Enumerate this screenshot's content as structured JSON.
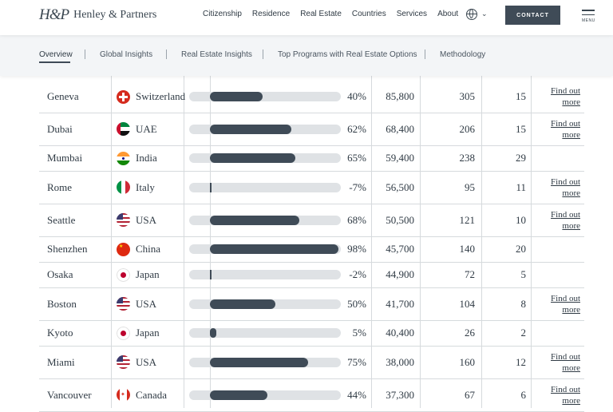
{
  "header": {
    "logo_mark": "H&P",
    "logo_text": "Henley & Partners",
    "nav": [
      "Citizenship",
      "Residence",
      "Real Estate",
      "Countries",
      "Services",
      "About"
    ],
    "contact_label": "CONTACT",
    "menu_label": "MENU",
    "globe_icon": "globe-icon",
    "chevron_icon": "chevron-down-icon"
  },
  "tabs": [
    "Overview",
    "Global Insights",
    "Real Estate Insights",
    "Top Programs with Real Estate Options",
    "Methodology"
  ],
  "active_tab": "Overview",
  "link_label_line1": "Find out",
  "link_label_line2": "more",
  "rows": [
    {
      "city": "Geneva",
      "country": "Switzerland",
      "flag": "switzerland",
      "pct": "40%",
      "pct_value": 40,
      "millionaires": "85,800",
      "centi": "305",
      "billionaires": "15",
      "link": true
    },
    {
      "city": "Dubai",
      "country": "UAE",
      "flag": "uae",
      "pct": "62%",
      "pct_value": 62,
      "millionaires": "68,400",
      "centi": "206",
      "billionaires": "15",
      "link": true
    },
    {
      "city": "Mumbai",
      "country": "India",
      "flag": "india",
      "pct": "65%",
      "pct_value": 65,
      "millionaires": "59,400",
      "centi": "238",
      "billionaires": "29",
      "link": false
    },
    {
      "city": "Rome",
      "country": "Italy",
      "flag": "italy",
      "pct": "-7%",
      "pct_value": -7,
      "millionaires": "56,500",
      "centi": "95",
      "billionaires": "11",
      "link": true
    },
    {
      "city": "Seattle",
      "country": "USA",
      "flag": "usa",
      "pct": "68%",
      "pct_value": 68,
      "millionaires": "50,500",
      "centi": "121",
      "billionaires": "10",
      "link": true
    },
    {
      "city": "Shenzhen",
      "country": "China",
      "flag": "china",
      "pct": "98%",
      "pct_value": 98,
      "millionaires": "45,700",
      "centi": "140",
      "billionaires": "20",
      "link": false
    },
    {
      "city": "Osaka",
      "country": "Japan",
      "flag": "japan",
      "pct": "-2%",
      "pct_value": -2,
      "millionaires": "44,900",
      "centi": "72",
      "billionaires": "5",
      "link": false
    },
    {
      "city": "Boston",
      "country": "USA",
      "flag": "usa",
      "pct": "50%",
      "pct_value": 50,
      "millionaires": "41,700",
      "centi": "104",
      "billionaires": "8",
      "link": true
    },
    {
      "city": "Kyoto",
      "country": "Japan",
      "flag": "japan",
      "pct": "5%",
      "pct_value": 5,
      "millionaires": "40,400",
      "centi": "26",
      "billionaires": "2",
      "link": false
    },
    {
      "city": "Miami",
      "country": "USA",
      "flag": "usa",
      "pct": "75%",
      "pct_value": 75,
      "millionaires": "38,000",
      "centi": "160",
      "billionaires": "12",
      "link": true
    },
    {
      "city": "Vancouver",
      "country": "Canada",
      "flag": "canada",
      "pct": "44%",
      "pct_value": 44,
      "millionaires": "37,300",
      "centi": "67",
      "billionaires": "6",
      "link": true
    }
  ],
  "colors": {
    "accent": "#3f4b57",
    "track": "#dfe2e5",
    "divider": "#d6dadd"
  }
}
